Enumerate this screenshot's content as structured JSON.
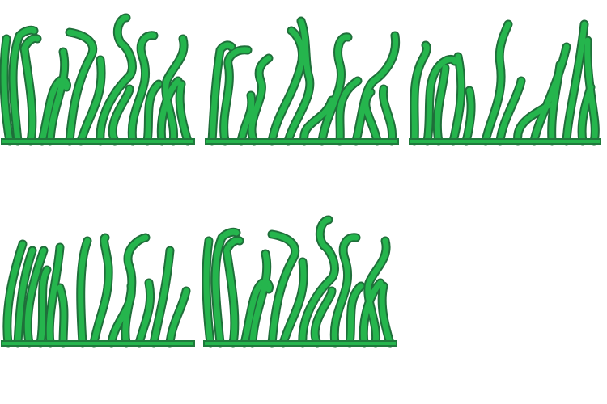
{
  "sprite_sheet": {
    "name": "seaweed-grass-sprites",
    "tile_count": 5,
    "colors": {
      "background": "#ffffff",
      "blade_fill": "#25b54d",
      "blade_outline": "#1f6f3a",
      "ground": "#25b54d"
    },
    "tiles": [
      {
        "id": "tile-1"
      },
      {
        "id": "tile-2"
      },
      {
        "id": "tile-3"
      },
      {
        "id": "tile-4"
      },
      {
        "id": "tile-5"
      }
    ]
  }
}
